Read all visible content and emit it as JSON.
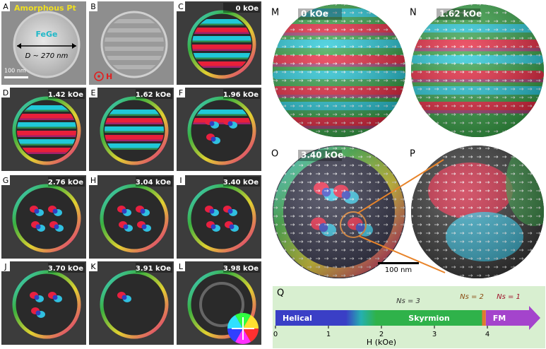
{
  "panels": [
    {
      "letter": "A",
      "material_top": "Amorphous Pt",
      "material_core": "FeGe",
      "diameter": "D ~ 270 nm",
      "scale_bar": "100 nm"
    },
    {
      "letter": "B",
      "field_direction": "H"
    },
    {
      "letter": "C",
      "field": "0 kOe"
    },
    {
      "letter": "D",
      "field": "1.42 kOe"
    },
    {
      "letter": "E",
      "field": "1.62 kOe"
    },
    {
      "letter": "F",
      "field": "1.96 kOe"
    },
    {
      "letter": "G",
      "field": "2.76 kOe"
    },
    {
      "letter": "H",
      "field": "3.04 kOe"
    },
    {
      "letter": "I",
      "field": "3.40 kOe"
    },
    {
      "letter": "J",
      "field": "3.70 kOe"
    },
    {
      "letter": "K",
      "field": "3.91 kOe"
    },
    {
      "letter": "L",
      "field": "3.98 kOe"
    },
    {
      "letter": "M",
      "field": "0 kOe"
    },
    {
      "letter": "N",
      "field": "1.62 kOe"
    },
    {
      "letter": "O",
      "field": "3.40 kOe",
      "scale_bar": "100 nm"
    },
    {
      "letter": "P"
    }
  ],
  "phase_diagram": {
    "letter": "Q",
    "xlabel": "H (kOe)",
    "xlim": [
      0,
      5
    ],
    "xticks": [
      0,
      1,
      2,
      3,
      4
    ],
    "phases": [
      {
        "name": "Helical",
        "start": 0,
        "end": 1.9,
        "color": "#3a3fc6"
      },
      {
        "name": "Skyrmion",
        "start": 1.9,
        "end": 3.9,
        "color": "#2fb24a"
      },
      {
        "name": "FM",
        "start": 3.97,
        "end": 5,
        "color": "#a444cc"
      }
    ],
    "skyrmion_numbers": [
      {
        "label": "Ns = 3",
        "color": "#333333"
      },
      {
        "label": "Ns = 2",
        "color": "#8a4a10"
      },
      {
        "label": "Ns = 1",
        "color": "#a0102a"
      }
    ]
  }
}
